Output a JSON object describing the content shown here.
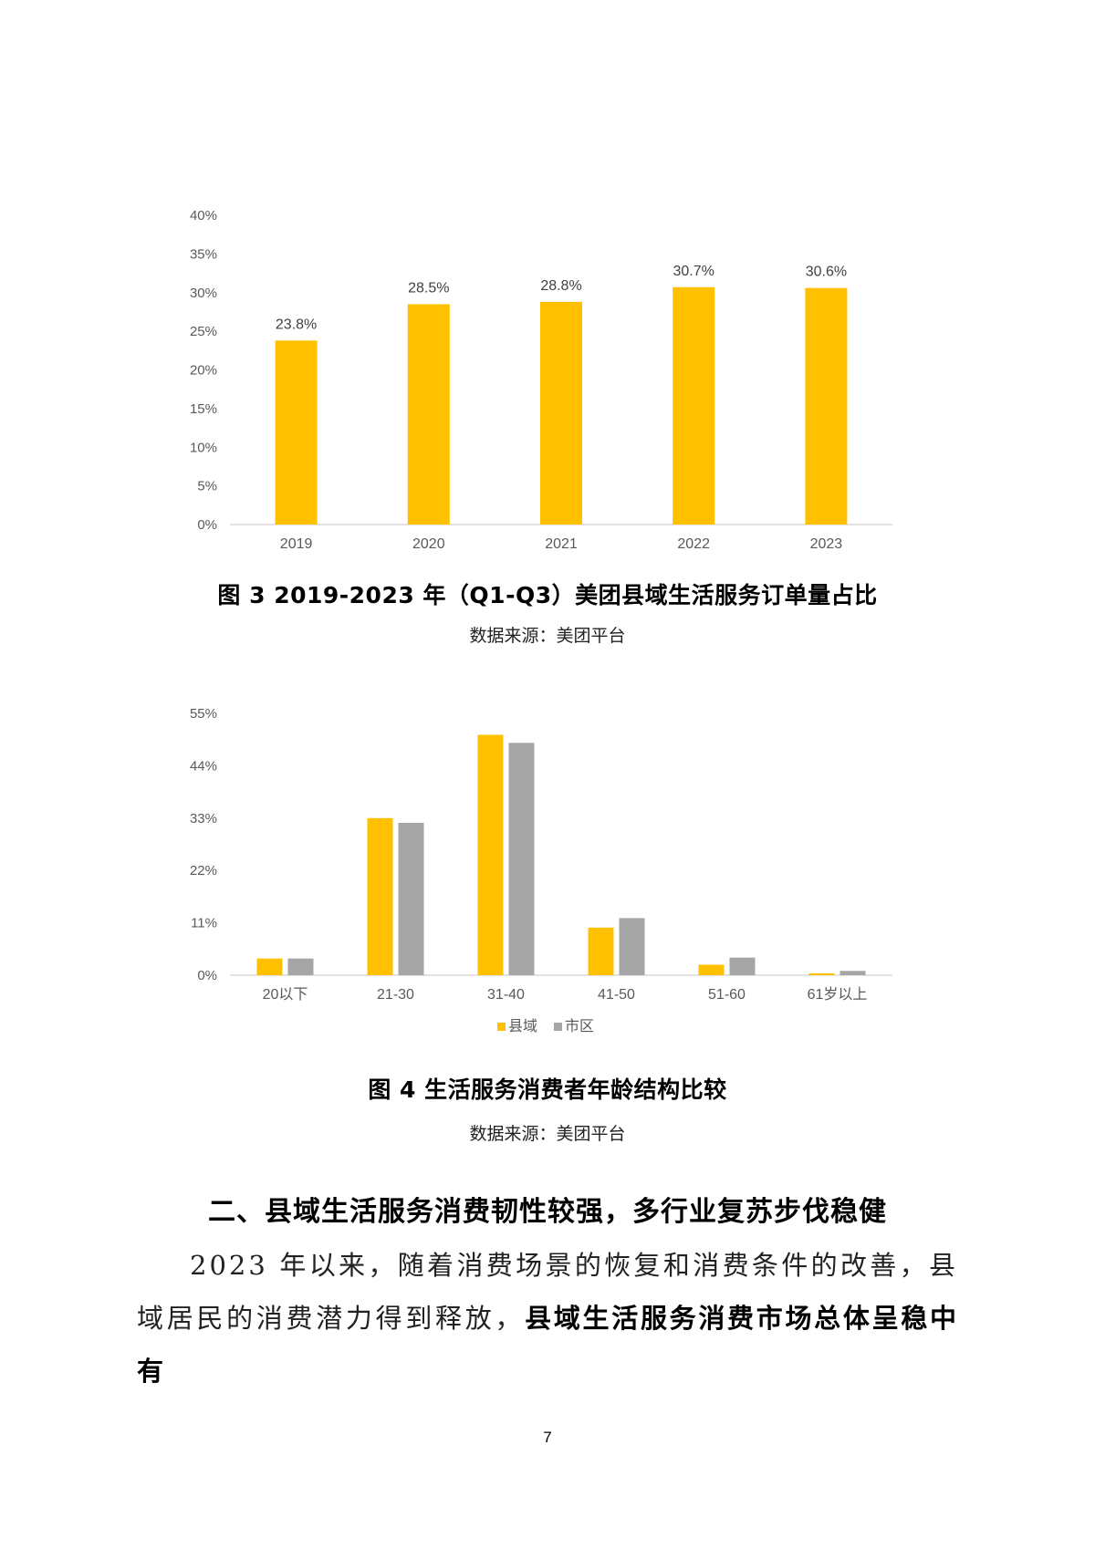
{
  "chart_data": [
    {
      "type": "bar",
      "categories": [
        "2019",
        "2020",
        "2021",
        "2022",
        "2023"
      ],
      "values": [
        23.8,
        28.5,
        28.8,
        30.7,
        30.6
      ],
      "value_labels": [
        "23.8%",
        "28.5%",
        "28.8%",
        "30.7%",
        "30.6%"
      ],
      "yticks": [
        "0%",
        "5%",
        "10%",
        "15%",
        "20%",
        "25%",
        "30%",
        "35%",
        "40%"
      ],
      "ylim": [
        0,
        40
      ],
      "colors": [
        "#FFC000"
      ],
      "grid": false,
      "title": "",
      "xlabel": "",
      "ylabel": ""
    },
    {
      "type": "bar",
      "categories": [
        "20以下",
        "21-30",
        "31-40",
        "41-50",
        "51-60",
        "61岁以上"
      ],
      "series": [
        {
          "name": "县域",
          "values": [
            3.5,
            33,
            50.5,
            10,
            2.2,
            0.4
          ]
        },
        {
          "name": "市区",
          "values": [
            3.5,
            32,
            48.8,
            12,
            3.7,
            0.9
          ]
        }
      ],
      "yticks": [
        "0%",
        "11%",
        "22%",
        "33%",
        "44%",
        "55%"
      ],
      "ylim": [
        0,
        55
      ],
      "colors": [
        "#FFC000",
        "#A5A5A5"
      ],
      "legend": "bottom",
      "grid": false,
      "title": "",
      "xlabel": "",
      "ylabel": ""
    }
  ],
  "figure3": {
    "caption": "图 3 2019-2023 年（Q1-Q3）美团县域生活服务订单量占比",
    "source": "数据来源：美团平台"
  },
  "figure4": {
    "caption": "图 4 生活服务消费者年龄结构比较",
    "source": "数据来源：美团平台"
  },
  "section": {
    "heading": "二、县域生活服务消费韧性较强，多行业复苏步伐稳健",
    "para_normal": "2023 年以来，随着消费场景的恢复和消费条件的改善，县域居民的消费潜力得到释放，",
    "para_bold": "县域生活服务消费市场总体呈稳中有"
  },
  "page_number": "7"
}
